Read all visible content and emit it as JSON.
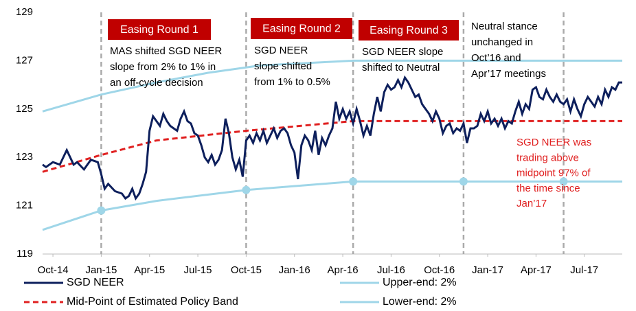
{
  "chart_data": {
    "type": "line",
    "xlim": [
      -3,
      165
    ],
    "xticks": [
      {
        "value": 0,
        "label": "Oct-14"
      },
      {
        "value": 14,
        "label": "Jan-15"
      },
      {
        "value": 28,
        "label": "Apr-15"
      },
      {
        "value": 42,
        "label": "Jul-15"
      },
      {
        "value": 56,
        "label": "Oct-15"
      },
      {
        "value": 70,
        "label": "Jan-16"
      },
      {
        "value": 84,
        "label": "Apr-16"
      },
      {
        "value": 98,
        "label": "Jul-16"
      },
      {
        "value": 112,
        "label": "Oct-16"
      },
      {
        "value": 126,
        "label": "Jan-17"
      },
      {
        "value": 140,
        "label": "Apr-17"
      },
      {
        "value": 154,
        "label": "Jul-17"
      }
    ],
    "ylim": [
      119,
      129
    ],
    "yticks": [
      119,
      121,
      123,
      125,
      127,
      129
    ],
    "grid": false,
    "vlines": [
      14,
      56,
      87,
      119,
      148
    ],
    "series": [
      {
        "name": "SGD NEER",
        "color": "#0d1f5c",
        "x": [
          -3,
          -2,
          0,
          2,
          4,
          6,
          7,
          9,
          11,
          13,
          14,
          15,
          16,
          18,
          20,
          21,
          22,
          23,
          24,
          25,
          26,
          27,
          28,
          29,
          30,
          31,
          32,
          33,
          34,
          35,
          36,
          37,
          38,
          39,
          40,
          41,
          42,
          43,
          44,
          45,
          46,
          47,
          48,
          49,
          50,
          51,
          52,
          53,
          54,
          55,
          56,
          57,
          58,
          59,
          60,
          61,
          62,
          63,
          64,
          65,
          66,
          67,
          68,
          69,
          70,
          71,
          72,
          73,
          74,
          75,
          76,
          77,
          78,
          79,
          80,
          81,
          82,
          83,
          84,
          85,
          86,
          87,
          88,
          89,
          90,
          91,
          92,
          93,
          94,
          95,
          96,
          97,
          98,
          99,
          100,
          101,
          102,
          103,
          104,
          105,
          106,
          107,
          108,
          109,
          110,
          111,
          112,
          113,
          114,
          115,
          116,
          117,
          118,
          119,
          120,
          121,
          122,
          123,
          124,
          125,
          126,
          127,
          128,
          129,
          130,
          131,
          132,
          133,
          134,
          135,
          136,
          137,
          138,
          139,
          140,
          141,
          142,
          143,
          144,
          145,
          146,
          147,
          148,
          149,
          150,
          151,
          152,
          153,
          154,
          155,
          156,
          157,
          158,
          159,
          160,
          161,
          162,
          163,
          164,
          165
        ],
        "values": [
          122.7,
          122.6,
          122.8,
          122.7,
          123.3,
          122.7,
          122.8,
          122.5,
          122.9,
          122.8,
          122.3,
          121.7,
          121.9,
          121.6,
          121.5,
          121.3,
          121.4,
          121.7,
          121.3,
          121.5,
          121.9,
          122.4,
          124.1,
          124.7,
          124.5,
          124.3,
          124.8,
          124.5,
          124.3,
          124.2,
          124.1,
          124.6,
          124.9,
          124.5,
          124.4,
          124.0,
          123.9,
          123.5,
          123.0,
          122.8,
          123.1,
          122.7,
          122.9,
          123.3,
          124.6,
          124.0,
          123.0,
          122.5,
          122.9,
          122.2,
          123.7,
          123.9,
          123.6,
          124.0,
          123.7,
          124.1,
          123.6,
          123.9,
          124.2,
          123.8,
          124.1,
          124.2,
          124.0,
          123.5,
          123.2,
          122.1,
          123.5,
          123.9,
          123.7,
          123.3,
          124.1,
          123.1,
          123.8,
          123.5,
          123.9,
          124.2,
          125.3,
          124.6,
          125.0,
          124.6,
          124.9,
          124.4,
          125.0,
          124.5,
          123.9,
          124.3,
          123.9,
          124.8,
          125.5,
          124.9,
          125.7,
          126.0,
          125.8,
          125.9,
          126.2,
          125.9,
          126.3,
          126.1,
          125.8,
          125.5,
          125.6,
          125.2,
          125.0,
          124.8,
          124.5,
          124.9,
          124.6,
          124.0,
          124.3,
          124.4,
          124.0,
          124.2,
          124.1,
          124.4,
          123.6,
          124.2,
          124.2,
          124.3,
          124.8,
          124.5,
          124.9,
          124.4,
          124.6,
          124.3,
          124.6,
          124.2,
          124.5,
          124.4,
          124.9,
          125.3,
          124.8,
          125.2,
          125.0,
          125.8,
          125.9,
          125.5,
          125.4,
          125.8,
          125.5,
          125.3,
          125.6,
          125.3,
          125.2,
          125.4,
          124.9,
          125.4,
          125.0,
          124.7,
          125.2,
          125.5,
          125.3,
          125.1,
          125.5,
          125.2,
          125.8,
          125.5,
          125.9,
          125.8,
          126.1,
          126.1
        ]
      },
      {
        "name": "Mid-Point of Estimated Policy Band",
        "color": "#e02020",
        "dash": true,
        "x": [
          -3,
          14,
          30,
          56,
          87,
          165
        ],
        "values": [
          122.4,
          123.1,
          123.7,
          124.1,
          124.5,
          124.5
        ]
      },
      {
        "name": "Upper-end: 2%",
        "color": "#9fd6e8",
        "x": [
          -3,
          14,
          30,
          45,
          60,
          87,
          165
        ],
        "values": [
          124.9,
          125.6,
          126.1,
          126.5,
          126.8,
          127,
          127
        ]
      },
      {
        "name": "Lower-end: 2%",
        "color": "#9fd6e8",
        "markers": true,
        "x": [
          -3,
          14,
          30,
          56,
          87,
          119,
          148,
          165
        ],
        "values": [
          120,
          120.8,
          121.2,
          121.65,
          122,
          122,
          122,
          122
        ]
      }
    ],
    "annotations": [
      {
        "title": "Easing Round 1",
        "text": [
          "MAS shifted SGD NEER",
          "slope from 2% to 1% in",
          "an off-cycle decision"
        ]
      },
      {
        "title": "Easing Round 2",
        "text": [
          "SGD NEER",
          "slope shifted",
          "from 1% to 0.5%"
        ]
      },
      {
        "title": "Easing Round 3",
        "text": [
          "SGD NEER slope",
          "shifted to Neutral"
        ]
      },
      {
        "text": [
          "Neutral stance",
          "unchanged in",
          "Oct’16 and",
          "Apr’17 meetings"
        ]
      }
    ],
    "note": [
      "SGD NEER was",
      "trading above",
      "midpoint 97% of",
      "the time since",
      "Jan’17"
    ]
  }
}
